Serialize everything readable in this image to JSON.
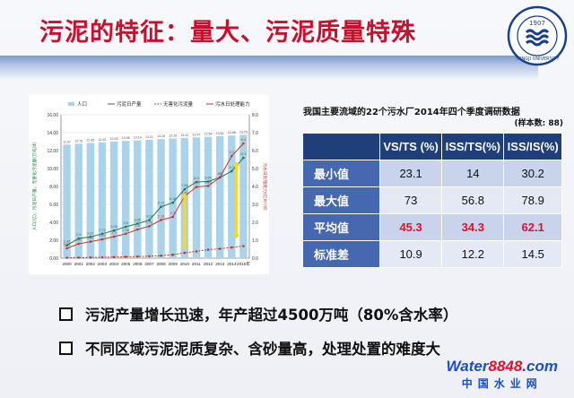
{
  "slide": {
    "title": "污泥的特征：量大、污泥质量特殊",
    "logo": {
      "year": "1907",
      "text": "TONGJI UNIVERSITY"
    },
    "bullets": [
      "污泥产量增长迅速，年产超过4500万吨（80%含水率）",
      "不同区域污泥泥质复杂、含砂量高，处理处置的难度大"
    ],
    "watermark": {
      "prefix": "Water",
      "number": "8848",
      "suffix": ".com",
      "cn": "中国水业网"
    }
  },
  "chart_data": {
    "type": "bar",
    "categories": [
      "2000",
      "2001",
      "2002",
      "2003",
      "2004",
      "2005",
      "2006",
      "2007",
      "2008",
      "2009",
      "2010",
      "2011",
      "2012",
      "2013",
      "2014",
      "2015年"
    ],
    "legend": [
      "人口",
      "污泥日产量",
      "无害化污泥量",
      "污水日处理能力"
    ],
    "yleft_ticks": [
      "0.00",
      "2.00",
      "4.00",
      "6.00",
      "8.00",
      "10.00",
      "12.00",
      "14.00",
      "16.00"
    ],
    "yright_ticks": [
      "0.0",
      "1.0",
      "2.0",
      "3.0",
      "4.0",
      "5.0",
      "6.0",
      "7.0",
      "8.0"
    ],
    "ylabel_left": "人口(亿)；污泥日产量，无害化污泥量(万吨/d)",
    "ylabel_right": "污水日处理能力(亿m³/d)",
    "ylim_left": [
      0,
      16
    ],
    "ylim_right": [
      0,
      8
    ],
    "series": [
      {
        "name": "人口",
        "values": [
          12.67,
          12.76,
          12.85,
          12.92,
          13.0,
          13.08,
          13.14,
          13.21,
          13.28,
          13.35,
          13.41,
          13.47,
          13.54,
          13.61,
          13.68,
          13.75
        ]
      },
      {
        "name": "污泥日产量",
        "values": [
          1.43,
          2.2,
          2.37,
          2.72,
          3.08,
          3.5,
          3.85,
          4.24,
          5.73,
          6.18,
          7.68,
          8.5,
          8.55,
          9.0,
          9.7,
          11.2
        ]
      },
      {
        "name": "无害化污泥量",
        "values": [
          0.05,
          0.06,
          0.08,
          0.1,
          0.12,
          0.15,
          0.18,
          0.22,
          0.28,
          0.38,
          0.6,
          0.75,
          0.95,
          1.05,
          1.2,
          1.35
        ]
      },
      {
        "name": "污水日处理能力",
        "values": [
          0.55,
          0.8,
          0.92,
          1.05,
          1.2,
          1.36,
          1.6,
          1.78,
          2.13,
          2.3,
          3.46,
          3.97,
          4.03,
          4.5,
          5.7,
          6.4
        ]
      }
    ]
  },
  "table": {
    "caption": "我国主要流域的22个污水厂2014年四个季度调研数据",
    "sample": "(样本数: 88)",
    "headers": [
      "",
      "VS/TS (%)",
      "ISS/TS(%)",
      "ISS/IS(%)"
    ],
    "rows": [
      {
        "label": "最小值",
        "values": [
          "23.1",
          "14",
          "30.2"
        ]
      },
      {
        "label": "最大值",
        "values": [
          "73",
          "56.8",
          "78.9"
        ]
      },
      {
        "label": "平均值",
        "values": [
          "45.3",
          "34.3",
          "62.1"
        ]
      },
      {
        "label": "标准差",
        "values": [
          "10.9",
          "12.2",
          "14.5"
        ]
      }
    ]
  }
}
